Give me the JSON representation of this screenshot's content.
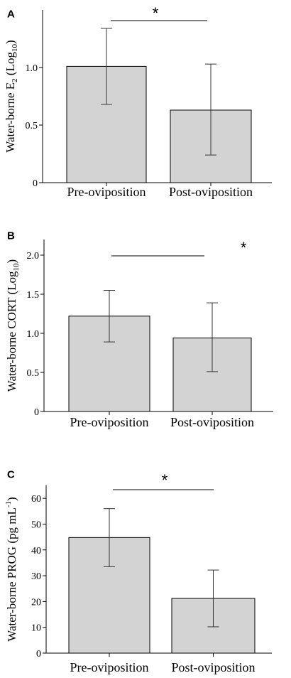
{
  "chart_data": [
    {
      "panel": "A",
      "type": "bar",
      "categories": [
        "Pre-oviposition",
        "Post-oviposition"
      ],
      "values": [
        1.01,
        0.63
      ],
      "error_low": [
        0.68,
        0.24
      ],
      "error_high": [
        1.34,
        1.03
      ],
      "ylabel_parts": [
        "Water-borne E",
        "2",
        " (Log",
        "10",
        ")"
      ],
      "ylim": [
        0,
        1.5
      ],
      "yticks": [
        "0",
        "0.5",
        "1.0"
      ],
      "significance": "*",
      "grid": false
    },
    {
      "panel": "B",
      "type": "bar",
      "categories": [
        "Pre-oviposition",
        "Post-oviposition"
      ],
      "values": [
        1.22,
        0.94
      ],
      "error_low": [
        0.89,
        0.51
      ],
      "error_high": [
        1.55,
        1.39
      ],
      "ylabel_parts": [
        "Water-borne CORT (Log",
        "10",
        ")"
      ],
      "ylim": [
        0,
        2.2
      ],
      "yticks": [
        "0",
        "0.5",
        "1.0",
        "1.5",
        "2.0"
      ],
      "significance": "*",
      "grid": false
    },
    {
      "panel": "C",
      "type": "bar",
      "categories": [
        "Pre-oviposition",
        "Post-oviposition"
      ],
      "values": [
        44.8,
        21.2
      ],
      "error_low": [
        33.5,
        10.2
      ],
      "error_high": [
        56.0,
        32.2
      ],
      "ylabel_parts": [
        "Water-borne PROG (pg mL",
        "-1",
        ")"
      ],
      "ylim": [
        0,
        65
      ],
      "yticks": [
        "0",
        "10",
        "20",
        "30",
        "40",
        "50",
        "60"
      ],
      "significance": "*",
      "grid": false
    }
  ]
}
